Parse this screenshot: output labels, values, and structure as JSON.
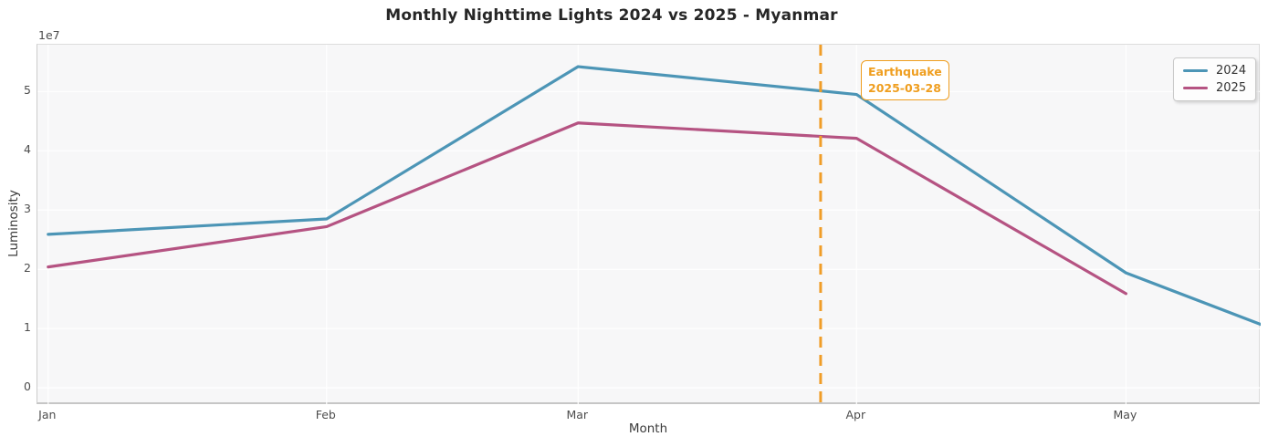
{
  "chart_data": {
    "type": "line",
    "title": "Monthly Nighttime Lights 2024 vs 2025 - Myanmar",
    "xlabel": "Month",
    "ylabel": "Luminosity",
    "y_offset_label": "1e7",
    "plot_background": "#f7f7f8",
    "grid_color": "#ffffff",
    "grid": true,
    "x_axis": {
      "unit": "days from Jan 1",
      "range_days": [
        -1.2,
        135
      ],
      "ticks": [
        {
          "day": 0,
          "label": "Jan"
        },
        {
          "day": 31,
          "label": "Feb"
        },
        {
          "day": 59,
          "label": "Mar"
        },
        {
          "day": 90,
          "label": "Apr"
        },
        {
          "day": 120,
          "label": "May"
        }
      ]
    },
    "y_axis": {
      "lim": [
        -2900000,
        57900000
      ],
      "ticks": [
        {
          "value": 0,
          "label": "0"
        },
        {
          "value": 10000000,
          "label": "1"
        },
        {
          "value": 20000000,
          "label": "2"
        },
        {
          "value": 30000000,
          "label": "3"
        },
        {
          "value": 40000000,
          "label": "4"
        },
        {
          "value": 50000000,
          "label": "5"
        }
      ]
    },
    "series": [
      {
        "name": "2024",
        "color": "#4c95b6",
        "points": [
          {
            "day": 0,
            "month": "Jan",
            "value": 25900000
          },
          {
            "day": 31,
            "month": "Feb",
            "value": 28500000
          },
          {
            "day": 59,
            "month": "Mar",
            "value": 54200000
          },
          {
            "day": 90,
            "month": "Apr",
            "value": 49500000
          },
          {
            "day": 120,
            "month": "May",
            "value": 19400000
          },
          {
            "day": 135,
            "month": "clipped-at-axis-edge",
            "value": 10700000
          }
        ],
        "note": "line continues past May and is clipped at the right edge of the axes"
      },
      {
        "name": "2025",
        "color": "#b55382",
        "points": [
          {
            "day": 0,
            "month": "Jan",
            "value": 20400000
          },
          {
            "day": 31,
            "month": "Feb",
            "value": 27200000
          },
          {
            "day": 59,
            "month": "Mar",
            "value": 44700000
          },
          {
            "day": 90,
            "month": "Apr",
            "value": 42100000
          },
          {
            "day": 120,
            "month": "May",
            "value": 15900000
          }
        ]
      }
    ],
    "event_line": {
      "x_day": 86,
      "date": "2025-03-28",
      "color": "#f09d28",
      "style": "dashed",
      "label_line1": "Earthquake",
      "label_line2": "2025-03-28"
    },
    "legend": {
      "position": "upper right",
      "entries": [
        "2024",
        "2025"
      ]
    }
  }
}
